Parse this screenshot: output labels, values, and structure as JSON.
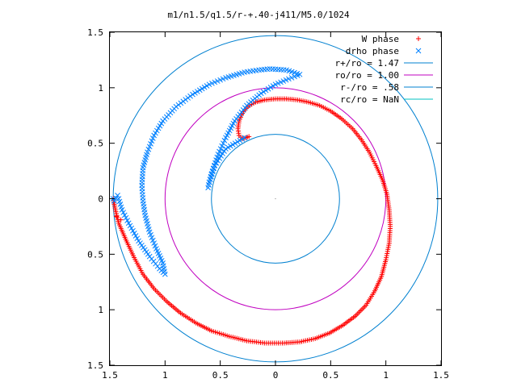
{
  "chart_data": {
    "type": "scatter",
    "title": "m1/n1.5/q1.5/r-+.40-j411/M5.0/1024",
    "xlim": [
      -1.5,
      1.5
    ],
    "ylim": [
      -1.5,
      1.5
    ],
    "x_tick_labels": [
      "1.5",
      "1",
      "0.5",
      "0",
      "0.5",
      "1",
      "1.5"
    ],
    "y_tick_labels": [
      "1.5",
      "1",
      "0.5",
      "0",
      "0.5",
      "1",
      "1.5"
    ],
    "tick_values": [
      -1.5,
      -1,
      -0.5,
      0,
      0.5,
      1,
      1.5
    ],
    "legend_position": "top-right",
    "series": [
      {
        "name": "W phase",
        "marker": "+",
        "color": "#ff0000",
        "path": [
          [
            -0.24,
            0.56
          ],
          [
            -0.3,
            0.54
          ],
          [
            -0.33,
            0.57
          ],
          [
            -0.34,
            0.63
          ],
          [
            -0.33,
            0.7
          ],
          [
            -0.3,
            0.77
          ],
          [
            -0.25,
            0.83
          ],
          [
            -0.18,
            0.87
          ],
          [
            -0.1,
            0.89
          ],
          [
            0.0,
            0.9
          ],
          [
            0.1,
            0.9
          ],
          [
            0.2,
            0.89
          ],
          [
            0.3,
            0.87
          ],
          [
            0.4,
            0.84
          ],
          [
            0.5,
            0.79
          ],
          [
            0.6,
            0.72
          ],
          [
            0.7,
            0.63
          ],
          [
            0.78,
            0.53
          ],
          [
            0.85,
            0.42
          ],
          [
            0.91,
            0.3
          ],
          [
            0.97,
            0.17
          ],
          [
            1.01,
            0.04
          ],
          [
            1.03,
            -0.1
          ],
          [
            1.04,
            -0.25
          ],
          [
            1.03,
            -0.4
          ],
          [
            1.0,
            -0.55
          ],
          [
            0.96,
            -0.7
          ],
          [
            0.9,
            -0.83
          ],
          [
            0.82,
            -0.96
          ],
          [
            0.72,
            -1.06
          ],
          [
            0.61,
            -1.14
          ],
          [
            0.49,
            -1.21
          ],
          [
            0.36,
            -1.26
          ],
          [
            0.22,
            -1.29
          ],
          [
            0.08,
            -1.3
          ],
          [
            -0.1,
            -1.3
          ],
          [
            -0.26,
            -1.28
          ],
          [
            -0.42,
            -1.24
          ],
          [
            -0.58,
            -1.19
          ],
          [
            -0.72,
            -1.12
          ],
          [
            -0.86,
            -1.03
          ],
          [
            -0.98,
            -0.93
          ],
          [
            -1.1,
            -0.81
          ],
          [
            -1.2,
            -0.68
          ],
          [
            -1.28,
            -0.53
          ],
          [
            -1.35,
            -0.38
          ],
          [
            -1.42,
            -0.22
          ],
          [
            -1.45,
            -0.1
          ],
          [
            -1.46,
            -0.05
          ],
          [
            -1.47,
            0.0
          ]
        ],
        "extra_points": [
          [
            -1.44,
            -0.16
          ],
          [
            -1.4,
            -0.19
          ]
        ]
      },
      {
        "name": "drho phase",
        "marker": "x",
        "color": "#0080ff",
        "path": [
          [
            -0.28,
            0.55
          ],
          [
            -0.45,
            0.45
          ],
          [
            -0.55,
            0.3
          ],
          [
            -0.6,
            0.15
          ],
          [
            -0.61,
            0.1
          ],
          [
            -0.58,
            0.22
          ],
          [
            -0.52,
            0.4
          ],
          [
            -0.45,
            0.55
          ],
          [
            -0.37,
            0.7
          ],
          [
            -0.26,
            0.84
          ],
          [
            -0.13,
            0.95
          ],
          [
            0.0,
            1.03
          ],
          [
            0.12,
            1.08
          ],
          [
            0.2,
            1.11
          ],
          [
            0.22,
            1.12
          ],
          [
            0.1,
            1.16
          ],
          [
            -0.05,
            1.17
          ],
          [
            -0.15,
            1.16
          ],
          [
            -0.28,
            1.14
          ],
          [
            -0.45,
            1.09
          ],
          [
            -0.6,
            1.03
          ],
          [
            -0.75,
            0.94
          ],
          [
            -0.9,
            0.83
          ],
          [
            -1.02,
            0.7
          ],
          [
            -1.1,
            0.57
          ],
          [
            -1.16,
            0.42
          ],
          [
            -1.2,
            0.28
          ],
          [
            -1.21,
            0.12
          ],
          [
            -1.2,
            -0.02
          ],
          [
            -1.18,
            -0.15
          ],
          [
            -1.14,
            -0.3
          ],
          [
            -1.08,
            -0.45
          ],
          [
            -1.02,
            -0.58
          ],
          [
            -1.0,
            -0.68
          ],
          [
            -1.05,
            -0.63
          ],
          [
            -1.14,
            -0.52
          ],
          [
            -1.24,
            -0.38
          ],
          [
            -1.33,
            -0.22
          ],
          [
            -1.39,
            -0.1
          ],
          [
            -1.42,
            0.0
          ],
          [
            -1.43,
            0.03
          ],
          [
            -1.46,
            -0.02
          ],
          [
            -1.47,
            0.0
          ]
        ]
      },
      {
        "name": "r+/ro = 1.47",
        "type": "circle",
        "radius": 1.47,
        "color": "#0080d0"
      },
      {
        "name": "ro/ro = 1.00",
        "type": "circle",
        "radius": 1.0,
        "color": "#c000c0"
      },
      {
        "name": "r-/ro = .58",
        "type": "circle",
        "radius": 0.58,
        "color": "#0080d0"
      },
      {
        "name": "rc/ro = NaN",
        "type": "circle",
        "radius": null,
        "color": "#00c0c0"
      }
    ]
  }
}
